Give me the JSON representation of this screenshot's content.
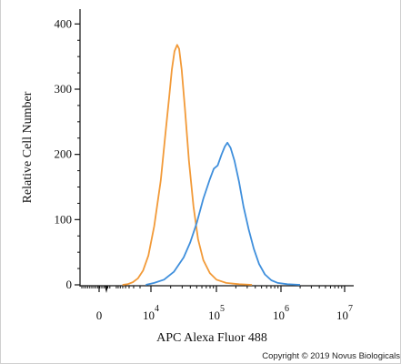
{
  "chart_data": {
    "type": "line",
    "title": "",
    "xlabel": "APC Alexa Fluor 488",
    "ylabel": "Relative Cell Number",
    "x_scale": "biexponential",
    "y_ticks": [
      0,
      100,
      200,
      300,
      400
    ],
    "x_ticks": [
      {
        "base": "0",
        "exp": ""
      },
      {
        "base": "10",
        "exp": "4"
      },
      {
        "base": "10",
        "exp": "5"
      },
      {
        "base": "10",
        "exp": "6"
      },
      {
        "base": "10",
        "exp": "7"
      }
    ],
    "ylim": [
      0,
      420
    ],
    "grid": false,
    "series": [
      {
        "color": "#F29A38",
        "points": [
          [
            0.45,
            0
          ],
          [
            0.55,
            1
          ],
          [
            0.65,
            4
          ],
          [
            0.75,
            10
          ],
          [
            0.85,
            22
          ],
          [
            0.95,
            45
          ],
          [
            1.05,
            90
          ],
          [
            1.15,
            160
          ],
          [
            1.22,
            230
          ],
          [
            1.28,
            290
          ],
          [
            1.32,
            330
          ],
          [
            1.36,
            358
          ],
          [
            1.4,
            368
          ],
          [
            1.43,
            362
          ],
          [
            1.47,
            330
          ],
          [
            1.52,
            270
          ],
          [
            1.58,
            190
          ],
          [
            1.65,
            120
          ],
          [
            1.72,
            70
          ],
          [
            1.8,
            38
          ],
          [
            1.9,
            18
          ],
          [
            2.0,
            8
          ],
          [
            2.15,
            3
          ],
          [
            2.35,
            1
          ],
          [
            2.55,
            0
          ]
        ]
      },
      {
        "color": "#3F8FDC",
        "points": [
          [
            0.9,
            0
          ],
          [
            1.05,
            3
          ],
          [
            1.2,
            8
          ],
          [
            1.35,
            20
          ],
          [
            1.5,
            42
          ],
          [
            1.6,
            65
          ],
          [
            1.7,
            95
          ],
          [
            1.8,
            132
          ],
          [
            1.9,
            162
          ],
          [
            1.96,
            178
          ],
          [
            2.02,
            183
          ],
          [
            2.08,
            200
          ],
          [
            2.13,
            212
          ],
          [
            2.17,
            218
          ],
          [
            2.22,
            210
          ],
          [
            2.28,
            190
          ],
          [
            2.35,
            158
          ],
          [
            2.42,
            120
          ],
          [
            2.5,
            85
          ],
          [
            2.58,
            55
          ],
          [
            2.66,
            32
          ],
          [
            2.75,
            16
          ],
          [
            2.85,
            7
          ],
          [
            2.95,
            3
          ],
          [
            3.1,
            1
          ],
          [
            3.3,
            0
          ]
        ]
      }
    ]
  },
  "copyright": "Copyright © 2019 Novus Biologicals"
}
